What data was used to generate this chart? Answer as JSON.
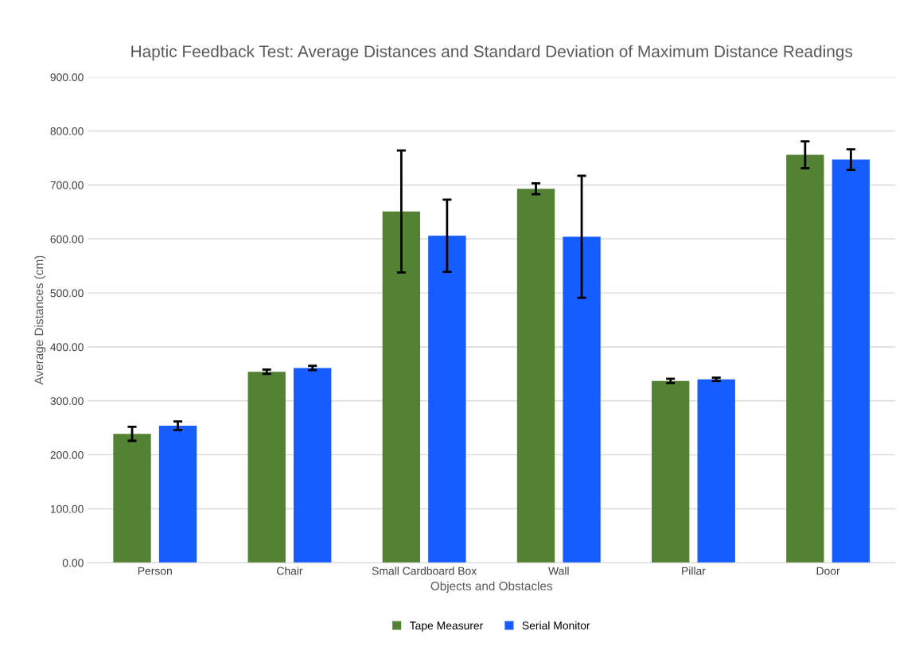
{
  "chart_data": {
    "type": "bar",
    "title": "Haptic Feedback Test: Average Distances and Standard Deviation of Maximum Distance Readings",
    "xlabel": "Objects and Obstacles",
    "ylabel": "Average Distances (cm)",
    "categories": [
      "Person",
      "Chair",
      "Small Cardboard Box",
      "Wall",
      "Pillar",
      "Door"
    ],
    "series": [
      {
        "name": "Tape Measurer",
        "color": "#548235",
        "values": [
          239,
          354,
          651,
          693,
          337,
          756
        ],
        "errors": [
          13,
          4,
          113,
          10,
          4,
          25
        ]
      },
      {
        "name": "Serial Monitor",
        "color": "#175cff",
        "values": [
          254,
          361,
          606,
          604,
          340,
          747
        ],
        "errors": [
          8,
          4,
          67,
          113,
          3,
          19
        ]
      }
    ],
    "ylim": [
      0,
      900
    ],
    "yticks": [
      {
        "value": 0,
        "label": "0.00"
      },
      {
        "value": 100,
        "label": "100.00"
      },
      {
        "value": 200,
        "label": "200.00"
      },
      {
        "value": 300,
        "label": "300.00"
      },
      {
        "value": 400,
        "label": "400.00"
      },
      {
        "value": 500,
        "label": "500.00"
      },
      {
        "value": 600,
        "label": "600.00"
      },
      {
        "value": 700,
        "label": "700.00"
      },
      {
        "value": 800,
        "label": "800.00"
      },
      {
        "value": 900,
        "label": "900.00"
      }
    ],
    "grid": "y",
    "legend": "bottom"
  }
}
